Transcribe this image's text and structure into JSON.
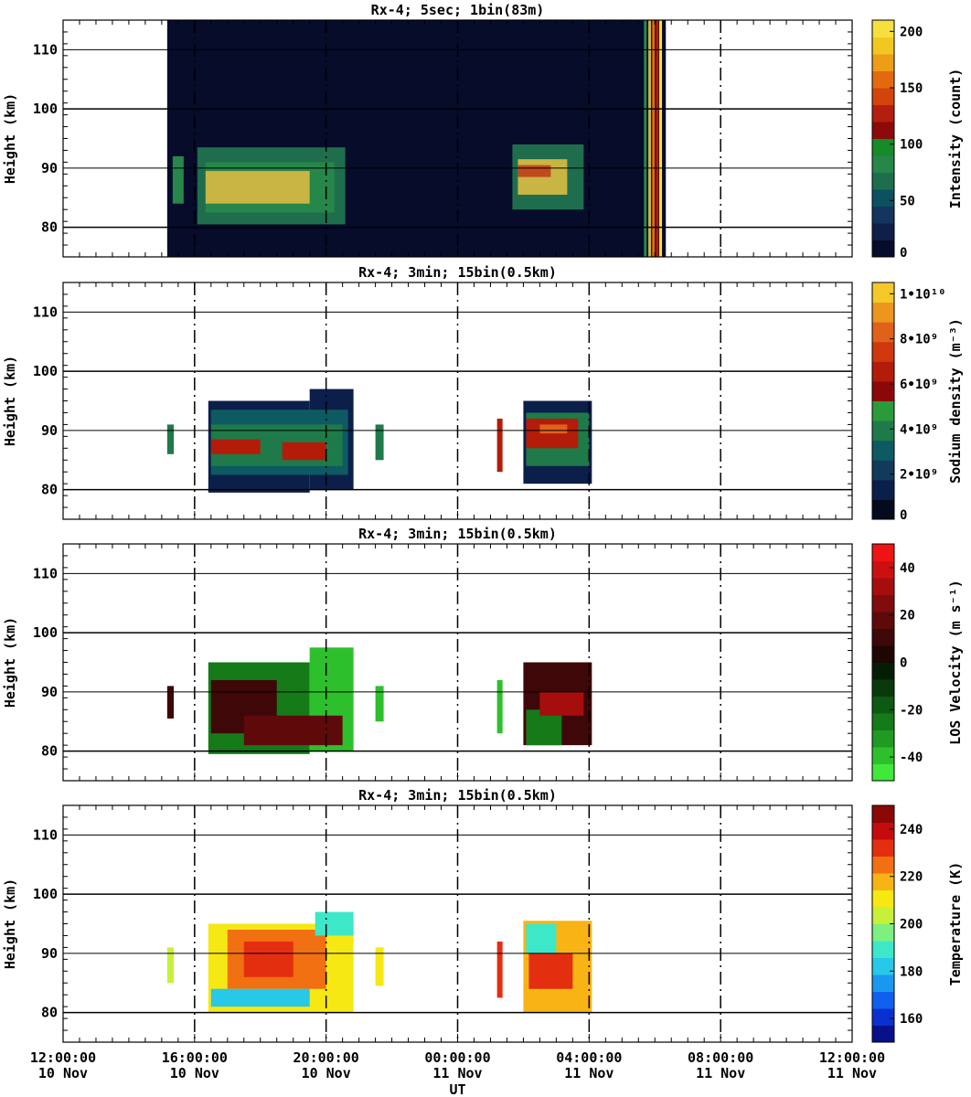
{
  "xaxis": {
    "label": "UT",
    "ticks": [
      {
        "time": "12:00:00",
        "date": "10 Nov"
      },
      {
        "time": "16:00:00",
        "date": "10 Nov"
      },
      {
        "time": "20:00:00",
        "date": "10 Nov"
      },
      {
        "time": "00:00:00",
        "date": "11 Nov"
      },
      {
        "time": "04:00:00",
        "date": "11 Nov"
      },
      {
        "time": "08:00:00",
        "date": "11 Nov"
      },
      {
        "time": "12:00:00",
        "date": "11 Nov"
      }
    ]
  },
  "chart_data": [
    {
      "type": "heatmap",
      "title": "Rx-4;  5sec; 1bin(83m)",
      "xlabel": "",
      "ylabel": "Height (km)",
      "xlim": [
        "10 Nov 12:00",
        "11 Nov 12:00"
      ],
      "ylim": [
        75,
        115
      ],
      "yticks": [
        80,
        90,
        100,
        110
      ],
      "colorbar": {
        "label": "Intensity (count)",
        "range": [
          0,
          210
        ],
        "ticks": [
          "0",
          "50",
          "100",
          "150",
          "200"
        ],
        "colors": [
          "#060c2a",
          "#0f1f4a",
          "#133560",
          "#0d5060",
          "#1e6e4e",
          "#27864a",
          "#178a2a",
          "#8c0a0a",
          "#b41e0e",
          "#d2440c",
          "#e46a10",
          "#ec9e18",
          "#f2c820",
          "#f5e040"
        ]
      },
      "data_extent": {
        "x_start": "10 Nov 15:10",
        "x_end": "11 Nov 06:20",
        "background": "#060c2a"
      },
      "layers": {
        "data_blocks": [
          {
            "x_start": "10 Nov 16:05",
            "x_end": "10 Nov 20:35",
            "y_bottom": 80.5,
            "y_top": 93.5,
            "color": "#1e6e4e"
          },
          {
            "x_start": "10 Nov 16:20",
            "x_end": "10 Nov 20:15",
            "y_bottom": 82.5,
            "y_top": 91,
            "color": "#27864a"
          },
          {
            "x_start": "10 Nov 16:20",
            "x_end": "10 Nov 19:30",
            "y_bottom": 84,
            "y_top": 89.5,
            "color": "#c9b544"
          },
          {
            "x_start": "10 Nov 15:20",
            "x_end": "10 Nov 15:40",
            "y_bottom": 84,
            "y_top": 92,
            "color": "#27864a"
          },
          {
            "x_start": "11 Nov 01:40",
            "x_end": "11 Nov 03:50",
            "y_bottom": 83,
            "y_top": 94,
            "color": "#1e6e4e"
          },
          {
            "x_start": "11 Nov 01:50",
            "x_end": "11 Nov 03:20",
            "y_bottom": 85.5,
            "y_top": 91.5,
            "color": "#c9b544"
          },
          {
            "x_start": "11 Nov 01:50",
            "x_end": "11 Nov 02:50",
            "y_bottom": 88.5,
            "y_top": 90.5,
            "color": "#c04a1c"
          }
        ],
        "bright_columns": [
          {
            "time": "11 Nov 05:40",
            "color": "#27864a"
          },
          {
            "time": "11 Nov 05:48",
            "color": "#c9b544"
          },
          {
            "time": "11 Nov 05:55",
            "color": "#e46a10"
          },
          {
            "time": "11 Nov 06:02",
            "color": "#b41e0e"
          },
          {
            "time": "11 Nov 06:08",
            "color": "#f5e040"
          }
        ]
      }
    },
    {
      "type": "heatmap",
      "title": "Rx-4; 3min; 15bin(0.5km)",
      "xlabel": "",
      "ylabel": "Height (km)",
      "xlim": [
        "10 Nov 12:00",
        "11 Nov 12:00"
      ],
      "ylim": [
        75,
        115
      ],
      "yticks": [
        80,
        90,
        100,
        110
      ],
      "colorbar": {
        "label": "Sodium density (m⁻³)",
        "range": [
          0,
          10500000000.0
        ],
        "ticks": [
          "0",
          "2•10⁹",
          "4•10⁹",
          "6•10⁹",
          "8•10⁹",
          "1•10¹⁰"
        ],
        "colors": [
          "#050a1e",
          "#0c1f4a",
          "#123a5a",
          "#0e5a62",
          "#1f7a4a",
          "#2b9a3a",
          "#8c0808",
          "#b41c0a",
          "#cf380c",
          "#e0621a",
          "#ec961e",
          "#f5c82a"
        ]
      },
      "layers": {
        "data_blocks": [
          {
            "x_start": "10 Nov 15:10",
            "x_end": "10 Nov 15:22",
            "y_bottom": 86,
            "y_top": 91,
            "color": "#1f7a4a"
          },
          {
            "x_start": "10 Nov 16:25",
            "x_end": "10 Nov 19:30",
            "y_bottom": 79.5,
            "y_top": 95,
            "color": "#0c1f4a"
          },
          {
            "x_start": "10 Nov 19:30",
            "x_end": "10 Nov 20:50",
            "y_bottom": 80,
            "y_top": 97,
            "color": "#0c1f4a"
          },
          {
            "x_start": "10 Nov 16:30",
            "x_end": "10 Nov 20:40",
            "y_bottom": 82.5,
            "y_top": 93.5,
            "color": "#0e5a62"
          },
          {
            "x_start": "10 Nov 16:30",
            "x_end": "10 Nov 20:30",
            "y_bottom": 84,
            "y_top": 91,
            "color": "#1f7a4a"
          },
          {
            "x_start": "10 Nov 16:30",
            "x_end": "10 Nov 18:00",
            "y_bottom": 86,
            "y_top": 88.5,
            "color": "#b41c0a"
          },
          {
            "x_start": "10 Nov 18:40",
            "x_end": "10 Nov 20:00",
            "y_bottom": 85,
            "y_top": 88,
            "color": "#b41c0a"
          },
          {
            "x_start": "10 Nov 21:30",
            "x_end": "10 Nov 21:45",
            "y_bottom": 85,
            "y_top": 91,
            "color": "#1f7a4a"
          },
          {
            "x_start": "11 Nov 01:12",
            "x_end": "11 Nov 01:22",
            "y_bottom": 83,
            "y_top": 92,
            "color": "#b41c0a"
          },
          {
            "x_start": "11 Nov 02:00",
            "x_end": "11 Nov 04:05",
            "y_bottom": 81,
            "y_top": 95,
            "color": "#0c1f4a"
          },
          {
            "x_start": "11 Nov 02:05",
            "x_end": "11 Nov 04:00",
            "y_bottom": 84,
            "y_top": 93,
            "color": "#1f7a4a"
          },
          {
            "x_start": "11 Nov 02:05",
            "x_end": "11 Nov 03:40",
            "y_bottom": 87,
            "y_top": 92,
            "color": "#b41c0a"
          },
          {
            "x_start": "11 Nov 02:30",
            "x_end": "11 Nov 03:20",
            "y_bottom": 89.5,
            "y_top": 91,
            "color": "#e0621a"
          }
        ]
      }
    },
    {
      "type": "heatmap",
      "title": "Rx-4; 3min; 15bin(0.5km)",
      "xlabel": "",
      "ylabel": "Height (km)",
      "xlim": [
        "10 Nov 12:00",
        "11 Nov 12:00"
      ],
      "ylim": [
        75,
        115
      ],
      "yticks": [
        80,
        90,
        100,
        110
      ],
      "colorbar": {
        "label": "LOS Velocity (m s⁻¹)",
        "range": [
          -50,
          50
        ],
        "ticks": [
          "-40",
          "-20",
          "0",
          "20",
          "40"
        ],
        "colors": [
          "#40e83a",
          "#2ec02c",
          "#1f9a22",
          "#157a18",
          "#0d5a12",
          "#083a0c",
          "#041e06",
          "#1e0604",
          "#3e0808",
          "#5e0a0a",
          "#800c0c",
          "#a60e0e",
          "#cc1010",
          "#ee1414"
        ]
      },
      "layers": {
        "data_blocks": [
          {
            "x_start": "10 Nov 15:10",
            "x_end": "10 Nov 15:22",
            "y_bottom": 85.5,
            "y_top": 91,
            "color": "#3e0808"
          },
          {
            "x_start": "10 Nov 16:25",
            "x_end": "10 Nov 19:30",
            "y_bottom": 79.5,
            "y_top": 95,
            "color": "#157a18"
          },
          {
            "x_start": "10 Nov 19:30",
            "x_end": "10 Nov 20:50",
            "y_bottom": 80,
            "y_top": 97.5,
            "color": "#2ec02c"
          },
          {
            "x_start": "10 Nov 16:30",
            "x_end": "10 Nov 18:30",
            "y_bottom": 83,
            "y_top": 92,
            "color": "#3e0808"
          },
          {
            "x_start": "10 Nov 17:30",
            "x_end": "10 Nov 20:30",
            "y_bottom": 81,
            "y_top": 86,
            "color": "#5e0a0a"
          },
          {
            "x_start": "10 Nov 21:30",
            "x_end": "10 Nov 21:45",
            "y_bottom": 85,
            "y_top": 91,
            "color": "#2ec02c"
          },
          {
            "x_start": "11 Nov 01:12",
            "x_end": "11 Nov 01:22",
            "y_bottom": 83,
            "y_top": 92,
            "color": "#2ec02c"
          },
          {
            "x_start": "11 Nov 02:00",
            "x_end": "11 Nov 04:05",
            "y_bottom": 81,
            "y_top": 95,
            "color": "#3e0808"
          },
          {
            "x_start": "11 Nov 02:05",
            "x_end": "11 Nov 03:10",
            "y_bottom": 81,
            "y_top": 87,
            "color": "#157a18"
          },
          {
            "x_start": "11 Nov 02:30",
            "x_end": "11 Nov 03:50",
            "y_bottom": 86,
            "y_top": 90,
            "color": "#a60e0e"
          }
        ]
      }
    },
    {
      "type": "heatmap",
      "title": "Rx-4; 3min; 15bin(0.5km)",
      "xlabel": "UT",
      "ylabel": "Height (km)",
      "xlim": [
        "10 Nov 12:00",
        "11 Nov 12:00"
      ],
      "ylim": [
        75,
        115
      ],
      "yticks": [
        80,
        90,
        100,
        110
      ],
      "colorbar": {
        "label": "Temperature (K)",
        "range": [
          150,
          250
        ],
        "ticks": [
          "160",
          "180",
          "200",
          "220",
          "240"
        ],
        "colors": [
          "#08108a",
          "#0a30d2",
          "#1060f0",
          "#1a98f0",
          "#28c8e8",
          "#3ce8c8",
          "#7cf080",
          "#c8f03a",
          "#f6e812",
          "#f8b414",
          "#f07012",
          "#e42e10",
          "#c40c0c",
          "#8a0808"
        ]
      },
      "layers": {
        "data_blocks": [
          {
            "x_start": "10 Nov 15:10",
            "x_end": "10 Nov 15:22",
            "y_bottom": 85,
            "y_top": 91,
            "color": "#c8f03a"
          },
          {
            "x_start": "10 Nov 16:25",
            "x_end": "10 Nov 20:50",
            "y_bottom": 80,
            "y_top": 95,
            "color": "#f6e812"
          },
          {
            "x_start": "10 Nov 17:00",
            "x_end": "10 Nov 20:00",
            "y_bottom": 84,
            "y_top": 94,
            "color": "#f07012"
          },
          {
            "x_start": "10 Nov 17:30",
            "x_end": "10 Nov 19:00",
            "y_bottom": 86,
            "y_top": 92,
            "color": "#e42e10"
          },
          {
            "x_start": "10 Nov 19:40",
            "x_end": "10 Nov 20:50",
            "y_bottom": 93,
            "y_top": 97,
            "color": "#3ce8c8"
          },
          {
            "x_start": "10 Nov 16:30",
            "x_end": "10 Nov 19:30",
            "y_bottom": 81,
            "y_top": 84,
            "color": "#28c8e8"
          },
          {
            "x_start": "10 Nov 21:30",
            "x_end": "10 Nov 21:45",
            "y_bottom": 84.5,
            "y_top": 91,
            "color": "#f6e812"
          },
          {
            "x_start": "11 Nov 01:12",
            "x_end": "11 Nov 01:22",
            "y_bottom": 82.5,
            "y_top": 92,
            "color": "#e42e10"
          },
          {
            "x_start": "11 Nov 02:00",
            "x_end": "11 Nov 04:05",
            "y_bottom": 80,
            "y_top": 95.5,
            "color": "#f8b414"
          },
          {
            "x_start": "11 Nov 02:10",
            "x_end": "11 Nov 03:30",
            "y_bottom": 84,
            "y_top": 90,
            "color": "#e42e10"
          },
          {
            "x_start": "11 Nov 02:05",
            "x_end": "11 Nov 03:00",
            "y_bottom": 90,
            "y_top": 95,
            "color": "#3ce8c8"
          }
        ]
      }
    }
  ]
}
